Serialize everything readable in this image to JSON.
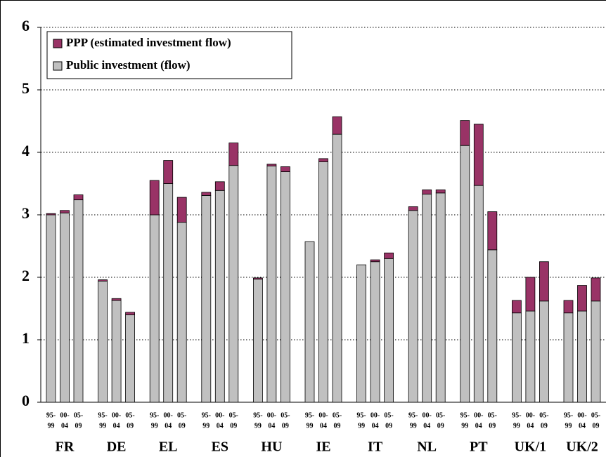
{
  "chart_data": {
    "type": "stacked-bar",
    "categories": [
      "FR",
      "DE",
      "EL",
      "ES",
      "HU",
      "IE",
      "IT",
      "NL",
      "PT",
      "UK/1",
      "UK/2"
    ],
    "periods": [
      {
        "top": "95-",
        "bottom": "99"
      },
      {
        "top": "00-",
        "bottom": "04"
      },
      {
        "top": "05-",
        "bottom": "09"
      }
    ],
    "series": [
      {
        "name": "Public investment (flow)",
        "color": "#c0c0c0",
        "values": [
          [
            3.0,
            3.03,
            3.24
          ],
          [
            1.94,
            1.63,
            1.4
          ],
          [
            3.0,
            3.5,
            2.88
          ],
          [
            3.31,
            3.39,
            3.79
          ],
          [
            1.97,
            3.78,
            3.69
          ],
          [
            2.57,
            3.85,
            4.29
          ],
          [
            2.2,
            2.25,
            2.3
          ],
          [
            3.07,
            3.33,
            3.35
          ],
          [
            4.11,
            3.47,
            2.44
          ],
          [
            1.43,
            1.46,
            1.62
          ],
          [
            1.43,
            1.46,
            1.62
          ]
        ]
      },
      {
        "name": "PPP (estimated investment flow)",
        "color": "#993366",
        "values": [
          [
            0.02,
            0.04,
            0.08
          ],
          [
            0.02,
            0.03,
            0.04
          ],
          [
            0.55,
            0.37,
            0.4
          ],
          [
            0.05,
            0.14,
            0.36
          ],
          [
            0.02,
            0.03,
            0.08
          ],
          [
            0,
            0.05,
            0.28
          ],
          [
            0,
            0.03,
            0.09
          ],
          [
            0.06,
            0.07,
            0.05
          ],
          [
            0.4,
            0.98,
            0.61
          ],
          [
            0.2,
            0.54,
            0.63
          ],
          [
            0.2,
            0.41,
            0.37
          ]
        ]
      }
    ],
    "ylim": [
      0,
      6
    ],
    "yticks": [
      0,
      1,
      2,
      3,
      4,
      5,
      6
    ],
    "grid": true,
    "legend": "top-left"
  }
}
